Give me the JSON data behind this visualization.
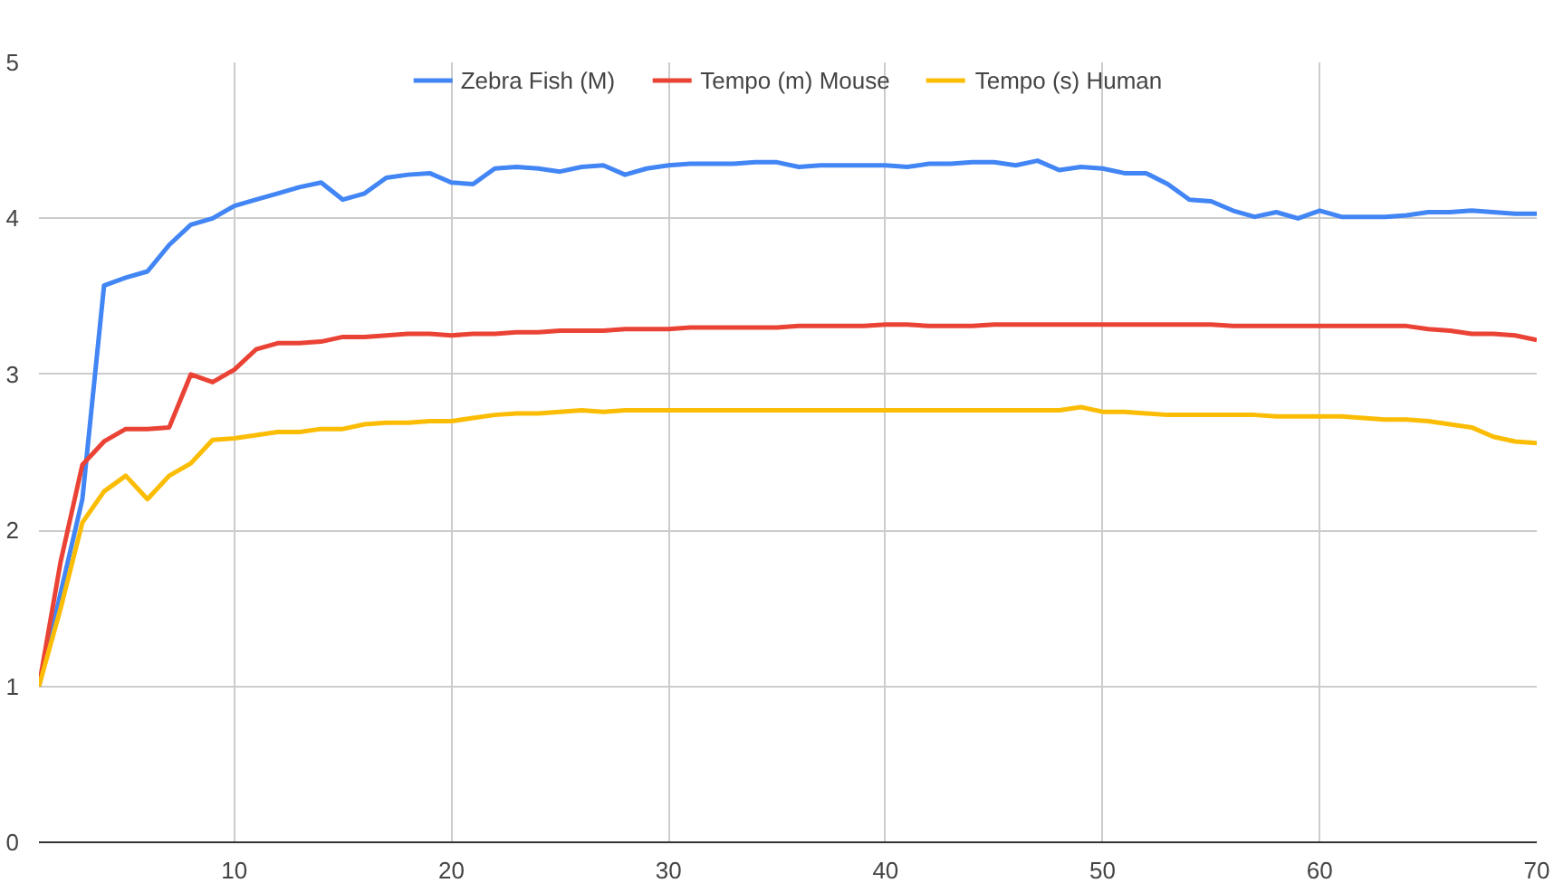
{
  "chart_data": {
    "type": "line",
    "x": [
      1,
      2,
      3,
      4,
      5,
      6,
      7,
      8,
      9,
      10,
      11,
      12,
      13,
      14,
      15,
      16,
      17,
      18,
      19,
      20,
      21,
      22,
      23,
      24,
      25,
      26,
      27,
      28,
      29,
      30,
      31,
      32,
      33,
      34,
      35,
      36,
      37,
      38,
      39,
      40,
      41,
      42,
      43,
      44,
      45,
      46,
      47,
      48,
      49,
      50,
      51,
      52,
      53,
      54,
      55,
      56,
      57,
      58,
      59,
      60,
      61,
      62,
      63,
      64,
      65,
      66,
      67,
      68,
      69,
      70
    ],
    "series": [
      {
        "name": "Zebra Fish (M)",
        "color": "#4285f4",
        "values": [
          1.0,
          1.6,
          2.2,
          3.57,
          3.62,
          3.66,
          3.83,
          3.96,
          4.0,
          4.08,
          4.12,
          4.16,
          4.2,
          4.23,
          4.12,
          4.16,
          4.26,
          4.28,
          4.29,
          4.23,
          4.22,
          4.32,
          4.33,
          4.32,
          4.3,
          4.33,
          4.34,
          4.28,
          4.32,
          4.34,
          4.35,
          4.35,
          4.35,
          4.36,
          4.36,
          4.33,
          4.34,
          4.34,
          4.34,
          4.34,
          4.33,
          4.35,
          4.35,
          4.36,
          4.36,
          4.34,
          4.37,
          4.31,
          4.33,
          4.32,
          4.29,
          4.29,
          4.22,
          4.12,
          4.11,
          4.05,
          4.01,
          4.04,
          4.0,
          4.05,
          4.01,
          4.01,
          4.01,
          4.02,
          4.04,
          4.04,
          4.05,
          4.04,
          4.03,
          4.03
        ]
      },
      {
        "name": "Tempo (m) Mouse",
        "color": "#ea4335",
        "values": [
          1.0,
          1.8,
          2.42,
          2.57,
          2.65,
          2.65,
          2.66,
          3.0,
          2.95,
          3.03,
          3.16,
          3.2,
          3.2,
          3.21,
          3.24,
          3.24,
          3.25,
          3.26,
          3.26,
          3.25,
          3.26,
          3.26,
          3.27,
          3.27,
          3.28,
          3.28,
          3.28,
          3.29,
          3.29,
          3.29,
          3.3,
          3.3,
          3.3,
          3.3,
          3.3,
          3.31,
          3.31,
          3.31,
          3.31,
          3.32,
          3.32,
          3.31,
          3.31,
          3.31,
          3.32,
          3.32,
          3.32,
          3.32,
          3.32,
          3.32,
          3.32,
          3.32,
          3.32,
          3.32,
          3.32,
          3.31,
          3.31,
          3.31,
          3.31,
          3.31,
          3.31,
          3.31,
          3.31,
          3.31,
          3.29,
          3.28,
          3.26,
          3.26,
          3.25,
          3.22
        ]
      },
      {
        "name": "Tempo (s) Human",
        "color": "#fbbc04",
        "values": [
          1.0,
          1.5,
          2.05,
          2.25,
          2.35,
          2.2,
          2.35,
          2.43,
          2.58,
          2.59,
          2.61,
          2.63,
          2.63,
          2.65,
          2.65,
          2.68,
          2.69,
          2.69,
          2.7,
          2.7,
          2.72,
          2.74,
          2.75,
          2.75,
          2.76,
          2.77,
          2.76,
          2.77,
          2.77,
          2.77,
          2.77,
          2.77,
          2.77,
          2.77,
          2.77,
          2.77,
          2.77,
          2.77,
          2.77,
          2.77,
          2.77,
          2.77,
          2.77,
          2.77,
          2.77,
          2.77,
          2.77,
          2.77,
          2.79,
          2.76,
          2.76,
          2.75,
          2.74,
          2.74,
          2.74,
          2.74,
          2.74,
          2.73,
          2.73,
          2.73,
          2.73,
          2.72,
          2.71,
          2.71,
          2.7,
          2.68,
          2.66,
          2.6,
          2.57,
          2.56
        ]
      }
    ],
    "xlim": [
      1,
      70
    ],
    "xticks": [
      10,
      20,
      30,
      40,
      50,
      60,
      70
    ],
    "ylim": [
      0,
      5
    ],
    "yticks": [
      0,
      1,
      2,
      3,
      4,
      5
    ],
    "grid": true,
    "legend": "top",
    "marker": "none",
    "line_style": "solid"
  }
}
